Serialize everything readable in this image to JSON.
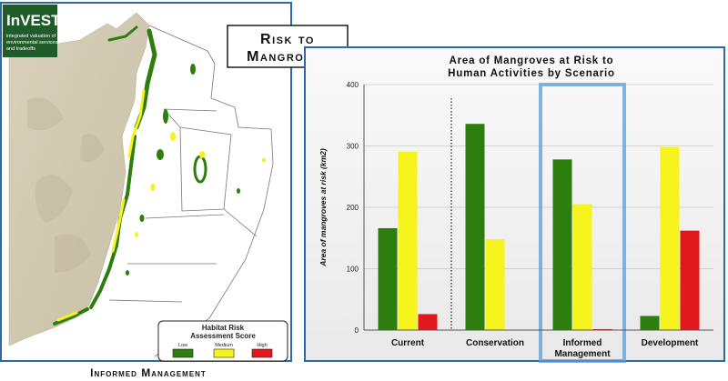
{
  "map_panel": {
    "logo": {
      "title": "InVEST",
      "tagline_lines": [
        "integrated valuation of",
        "environmental services",
        "and tradeoffs"
      ]
    },
    "legend": {
      "title_lines": [
        "Habitat Risk",
        "Assessment Score"
      ],
      "items": [
        {
          "label": "Low",
          "color": "#2e7d0f"
        },
        {
          "label": "Medium",
          "color": "#f7f31c"
        },
        {
          "label": "High",
          "color": "#e0171c"
        }
      ]
    },
    "caption": "Informed Management"
  },
  "heading_lines": [
    "Risk to",
    "Mangroves"
  ],
  "chart_data": {
    "type": "bar",
    "title_lines": [
      "Area of Mangroves at Risk to",
      "Human Activities by Scenario"
    ],
    "ylabel": "Area of mangroves at risk (km2)",
    "xlabel": "",
    "ylim": [
      0,
      400
    ],
    "yticks": [
      0,
      100,
      200,
      300,
      400
    ],
    "grid": true,
    "categories": [
      "Current",
      "Conservation",
      "Informed Management",
      "Development"
    ],
    "category_label_lines": [
      [
        "Current"
      ],
      [
        "Conservation"
      ],
      [
        "Informed",
        "Management"
      ],
      [
        "Development"
      ]
    ],
    "highlighted_category": "Informed Management",
    "series": [
      {
        "name": "Low",
        "color": "#2e7d0f",
        "values": [
          166,
          336,
          278,
          23
        ]
      },
      {
        "name": "Medium",
        "color": "#f7f31c",
        "values": [
          291,
          148,
          205,
          298
        ]
      },
      {
        "name": "High",
        "color": "#e0171c",
        "values": [
          26,
          0,
          1,
          162
        ]
      }
    ]
  }
}
